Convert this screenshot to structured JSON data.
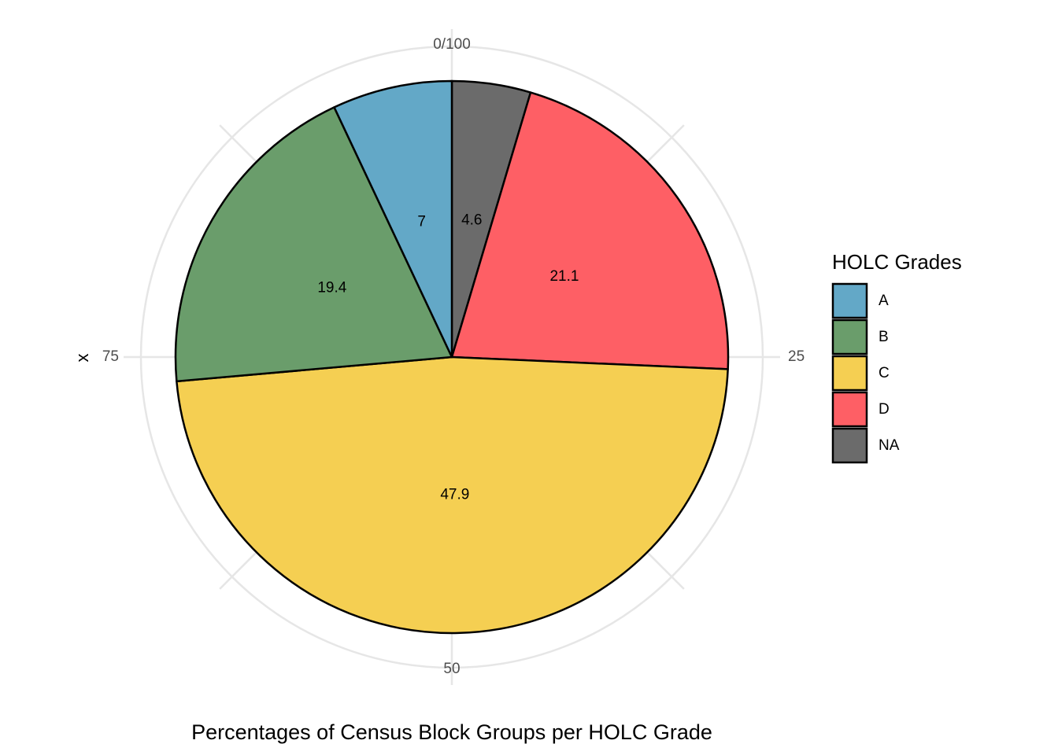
{
  "chart_data": {
    "type": "pie",
    "coord": "polar",
    "caption": "Percentages of Census Block Groups per HOLC Grade",
    "xlabel": "x",
    "theta_ticks": [
      "0/100",
      "25",
      "50",
      "75"
    ],
    "theta_tick_values": [
      0,
      25,
      50,
      75
    ],
    "legend": {
      "title": "HOLC Grades",
      "position": "right"
    },
    "grid": true,
    "slices": [
      {
        "label": "NA",
        "value": 4.6,
        "display": "4.6",
        "color": "#6b6b6b"
      },
      {
        "label": "D",
        "value": 21.1,
        "display": "21.1",
        "color": "#fe5f65"
      },
      {
        "label": "C",
        "value": 47.9,
        "display": "47.9",
        "color": "#f5cf52"
      },
      {
        "label": "B",
        "value": 19.4,
        "display": "19.4",
        "color": "#6a9d6b"
      },
      {
        "label": "A",
        "value": 7,
        "display": "7",
        "color": "#63a8c7"
      }
    ],
    "legend_order": [
      "A",
      "B",
      "C",
      "D",
      "NA"
    ]
  }
}
